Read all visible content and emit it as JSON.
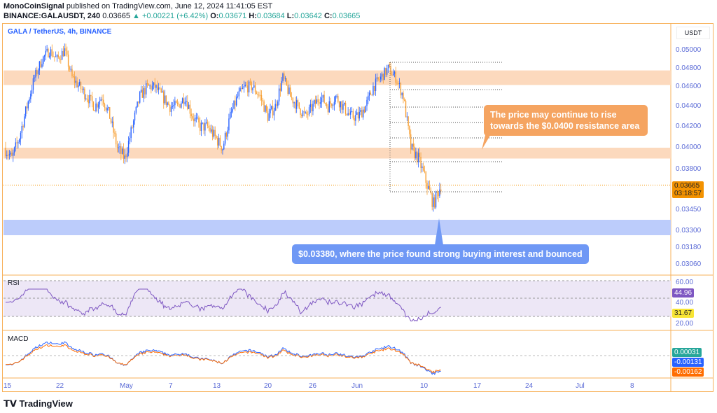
{
  "header": {
    "publisher": "MonoCoinSignal",
    "published": "published on TradingView.com, June 12, 2024 11:41:05 EST",
    "symbol": "BINANCE:GALAUSDT, 240",
    "price": "0.03665",
    "change": "▲ +0.00221 (+6.42%)",
    "o_label": "O:",
    "o": "0.03671",
    "h_label": "H:",
    "h": "0.03684",
    "l_label": "L:",
    "l": "0.03642",
    "c_label": "C:",
    "c": "0.03665"
  },
  "chart_title": "GALA / TetherUS, 4h, BINANCE",
  "currency": "USDT",
  "price_ticks": [
    "0.05000",
    "0.04800",
    "0.04600",
    "0.04400",
    "0.04200",
    "0.04000",
    "0.03800",
    "0.03450",
    "0.03300",
    "0.03180",
    "0.03060"
  ],
  "last_price_tag": {
    "price": "0.03665",
    "countdown": "03:18:57"
  },
  "rsi": {
    "label": "RSI",
    "ticks": [
      "60.00",
      "40.00",
      "20.00"
    ],
    "value": "44.96",
    "ma": "31.67"
  },
  "macd": {
    "label": "MACD",
    "hist": "0.00031",
    "macd": "-0.00131",
    "signal": "-0.00162"
  },
  "time_labels": [
    "15",
    "22",
    "May",
    "7",
    "13",
    "20",
    "26",
    "Jun",
    "10",
    "17",
    "24",
    "Jul",
    "8"
  ],
  "callouts": {
    "resistance": "The price may continue to rise towards the $0.0400 resistance area",
    "support": "$0.03380, where the price found strong buying interest and bounced"
  },
  "brand": "TradingView",
  "colors": {
    "up": "#2962ff",
    "down": "#f7a035",
    "zone": "#fcd9bd",
    "support": "#bcccfb"
  },
  "chart_data": {
    "type": "candlestick",
    "title": "GALA / TetherUS, 4h, BINANCE",
    "x_start": "2024-04-15",
    "x_unit": "day",
    "daily_close": [
      0.04,
      0.039,
      0.041,
      0.044,
      0.047,
      0.049,
      0.05,
      0.049,
      0.05,
      0.047,
      0.046,
      0.045,
      0.044,
      0.045,
      0.043,
      0.04,
      0.039,
      0.042,
      0.045,
      0.046,
      0.046,
      0.045,
      0.044,
      0.044,
      0.045,
      0.043,
      0.042,
      0.042,
      0.041,
      0.04,
      0.043,
      0.045,
      0.046,
      0.046,
      0.045,
      0.043,
      0.044,
      0.047,
      0.045,
      0.044,
      0.043,
      0.044,
      0.045,
      0.044,
      0.045,
      0.044,
      0.043,
      0.043,
      0.044,
      0.046,
      0.047,
      0.048,
      0.047,
      0.045,
      0.04,
      0.039,
      0.037,
      0.035,
      0.03665
    ],
    "resistance_zones": [
      [
        0.0462,
        0.0478
      ],
      [
        0.039,
        0.04
      ]
    ],
    "support_zone": [
      0.0327,
      0.0338
    ],
    "ylim": [
      0.03,
      0.0515
    ]
  }
}
